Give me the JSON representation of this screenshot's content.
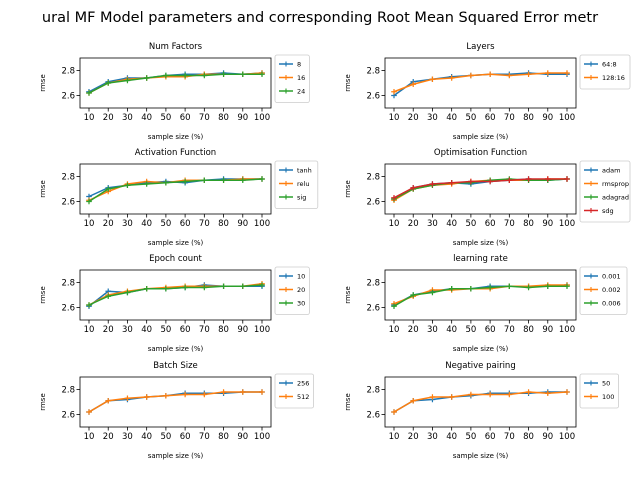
{
  "figure": {
    "title": "ural MF Model parameters and corresponding Root Mean Squared Error metr"
  },
  "colors": [
    "#1f77b4",
    "#ff7f0e",
    "#2ca02c",
    "#d62728"
  ],
  "chart_data": [
    {
      "type": "line",
      "title": "Num Factors",
      "xlabel": "sample size (%)",
      "ylabel": "rmse",
      "x": [
        10,
        20,
        30,
        40,
        50,
        60,
        70,
        80,
        90,
        100
      ],
      "yticks": [
        2.6,
        2.8
      ],
      "ylim": [
        2.5,
        2.9
      ],
      "legend": "right",
      "series": [
        {
          "name": "8",
          "values": [
            2.63,
            2.71,
            2.74,
            2.74,
            2.76,
            2.77,
            2.77,
            2.78,
            2.77,
            2.78
          ]
        },
        {
          "name": "16",
          "values": [
            2.62,
            2.7,
            2.73,
            2.74,
            2.75,
            2.75,
            2.77,
            2.77,
            2.77,
            2.78
          ]
        },
        {
          "name": "24",
          "values": [
            2.62,
            2.7,
            2.72,
            2.74,
            2.76,
            2.76,
            2.76,
            2.77,
            2.77,
            2.77
          ]
        }
      ]
    },
    {
      "type": "line",
      "title": "Layers",
      "xlabel": "sample size (%)",
      "ylabel": "rmse",
      "x": [
        10,
        20,
        30,
        40,
        50,
        60,
        70,
        80,
        90,
        100
      ],
      "yticks": [
        2.6,
        2.8
      ],
      "ylim": [
        2.5,
        2.9
      ],
      "legend": "right",
      "series": [
        {
          "name": "64:8",
          "values": [
            2.6,
            2.71,
            2.73,
            2.75,
            2.76,
            2.77,
            2.77,
            2.78,
            2.77,
            2.77
          ]
        },
        {
          "name": "128:16",
          "values": [
            2.63,
            2.69,
            2.73,
            2.74,
            2.76,
            2.77,
            2.76,
            2.77,
            2.78,
            2.78
          ]
        }
      ]
    },
    {
      "type": "line",
      "title": "Activation Function",
      "xlabel": "sample size (%)",
      "ylabel": "rmse",
      "x": [
        10,
        20,
        30,
        40,
        50,
        60,
        70,
        80,
        90,
        100
      ],
      "yticks": [
        2.6,
        2.8
      ],
      "ylim": [
        2.5,
        2.9
      ],
      "legend": "right",
      "series": [
        {
          "name": "tanh",
          "values": [
            2.64,
            2.71,
            2.73,
            2.75,
            2.76,
            2.75,
            2.77,
            2.78,
            2.78,
            2.78
          ]
        },
        {
          "name": "relu",
          "values": [
            2.61,
            2.68,
            2.74,
            2.76,
            2.75,
            2.77,
            2.77,
            2.77,
            2.78,
            2.78
          ]
        },
        {
          "name": "sig",
          "values": [
            2.6,
            2.7,
            2.73,
            2.74,
            2.75,
            2.76,
            2.77,
            2.77,
            2.77,
            2.78
          ]
        }
      ]
    },
    {
      "type": "line",
      "title": "Optimisation Function",
      "xlabel": "sample size (%)",
      "ylabel": "rmse",
      "x": [
        10,
        20,
        30,
        40,
        50,
        60,
        70,
        80,
        90,
        100
      ],
      "yticks": [
        2.6,
        2.8
      ],
      "ylim": [
        2.5,
        2.9
      ],
      "legend": "right",
      "series": [
        {
          "name": "adam",
          "values": [
            2.62,
            2.71,
            2.74,
            2.75,
            2.74,
            2.76,
            2.77,
            2.78,
            2.77,
            2.78
          ]
        },
        {
          "name": "rmsprop",
          "values": [
            2.61,
            2.7,
            2.73,
            2.74,
            2.76,
            2.77,
            2.77,
            2.77,
            2.78,
            2.78
          ]
        },
        {
          "name": "adagrad",
          "values": [
            2.62,
            2.7,
            2.73,
            2.75,
            2.75,
            2.77,
            2.78,
            2.77,
            2.77,
            2.78
          ]
        },
        {
          "name": "sdg",
          "values": [
            2.63,
            2.71,
            2.74,
            2.75,
            2.76,
            2.76,
            2.77,
            2.78,
            2.78,
            2.78
          ]
        }
      ]
    },
    {
      "type": "line",
      "title": "Epoch count",
      "xlabel": "sample size (%)",
      "ylabel": "rmse",
      "x": [
        10,
        20,
        30,
        40,
        50,
        60,
        70,
        80,
        90,
        100
      ],
      "yticks": [
        2.6,
        2.8
      ],
      "ylim": [
        2.5,
        2.9
      ],
      "legend": "right",
      "series": [
        {
          "name": "10",
          "values": [
            2.61,
            2.73,
            2.72,
            2.75,
            2.75,
            2.76,
            2.78,
            2.77,
            2.77,
            2.77
          ]
        },
        {
          "name": "20",
          "values": [
            2.62,
            2.7,
            2.73,
            2.75,
            2.76,
            2.77,
            2.77,
            2.77,
            2.77,
            2.79
          ]
        },
        {
          "name": "30",
          "values": [
            2.62,
            2.69,
            2.72,
            2.75,
            2.75,
            2.76,
            2.76,
            2.77,
            2.77,
            2.78
          ]
        }
      ]
    },
    {
      "type": "line",
      "title": "learning rate",
      "xlabel": "sample size (%)",
      "ylabel": "rmse",
      "x": [
        10,
        20,
        30,
        40,
        50,
        60,
        70,
        80,
        90,
        100
      ],
      "yticks": [
        2.6,
        2.8
      ],
      "ylim": [
        2.5,
        2.9
      ],
      "legend": "right",
      "series": [
        {
          "name": "0.001",
          "values": [
            2.62,
            2.7,
            2.73,
            2.75,
            2.75,
            2.77,
            2.77,
            2.77,
            2.77,
            2.78
          ]
        },
        {
          "name": "0.002",
          "values": [
            2.63,
            2.69,
            2.74,
            2.74,
            2.75,
            2.75,
            2.77,
            2.77,
            2.78,
            2.78
          ]
        },
        {
          "name": "0.006",
          "values": [
            2.61,
            2.7,
            2.72,
            2.75,
            2.75,
            2.76,
            2.77,
            2.76,
            2.77,
            2.77
          ]
        }
      ]
    },
    {
      "type": "line",
      "title": "Batch Size",
      "xlabel": "sample size (%)",
      "ylabel": "rmse",
      "x": [
        10,
        20,
        30,
        40,
        50,
        60,
        70,
        80,
        90,
        100
      ],
      "yticks": [
        2.6,
        2.8
      ],
      "ylim": [
        2.5,
        2.9
      ],
      "legend": "right",
      "series": [
        {
          "name": "256",
          "values": [
            2.62,
            2.71,
            2.72,
            2.74,
            2.75,
            2.77,
            2.77,
            2.77,
            2.78,
            2.78
          ]
        },
        {
          "name": "512",
          "values": [
            2.62,
            2.71,
            2.73,
            2.74,
            2.75,
            2.76,
            2.76,
            2.78,
            2.78,
            2.78
          ]
        }
      ]
    },
    {
      "type": "line",
      "title": "Negative pairing",
      "xlabel": "sample size (%)",
      "ylabel": "rmse",
      "x": [
        10,
        20,
        30,
        40,
        50,
        60,
        70,
        80,
        90,
        100
      ],
      "yticks": [
        2.6,
        2.8
      ],
      "ylim": [
        2.5,
        2.9
      ],
      "legend": "right",
      "series": [
        {
          "name": "50",
          "values": [
            2.62,
            2.71,
            2.72,
            2.74,
            2.75,
            2.77,
            2.77,
            2.77,
            2.78,
            2.78
          ]
        },
        {
          "name": "100",
          "values": [
            2.62,
            2.71,
            2.74,
            2.74,
            2.76,
            2.76,
            2.76,
            2.78,
            2.77,
            2.78
          ]
        }
      ]
    }
  ]
}
